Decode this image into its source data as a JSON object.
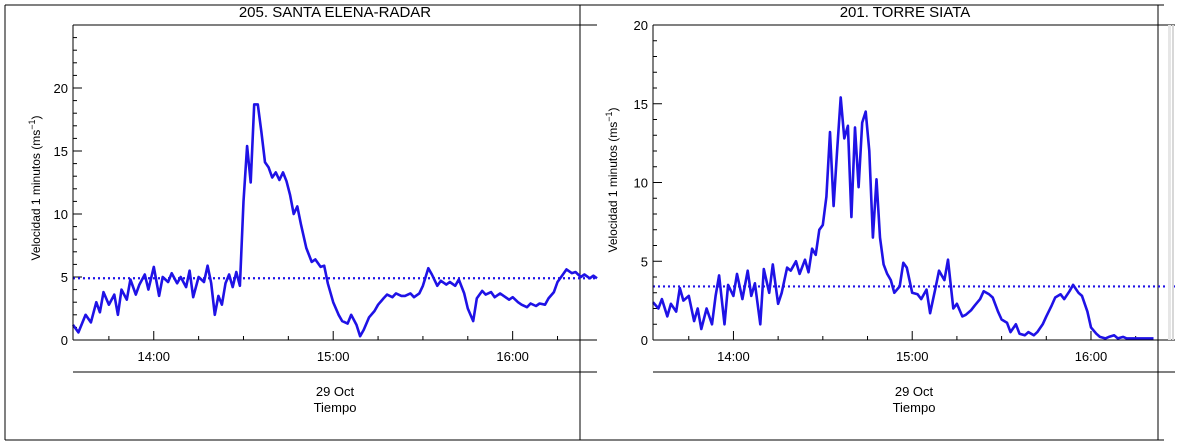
{
  "colors": {
    "series": "#1f12e6",
    "axis": "#000000",
    "background": "#ffffff"
  },
  "chart_data": [
    {
      "type": "line",
      "title": "205. SANTA ELENA-RADAR",
      "ylabel": "Velocidad 1 minutos (ms",
      "ylabel_sup": "−1",
      "ylabel_close": ")",
      "xlabel_date": "29 Oct",
      "xlabel": "Tiempo",
      "xlim": [
        13.55,
        16.47
      ],
      "ylim": [
        0,
        25
      ],
      "yticks": [
        0,
        5,
        10,
        15,
        20
      ],
      "ytick_labels": [
        "0",
        "5",
        "10",
        "15",
        "20"
      ],
      "xticks": [
        14,
        15,
        16
      ],
      "xtick_labels": [
        "14:00",
        "15:00",
        "16:00"
      ],
      "threshold": 4.9,
      "grid": false,
      "series": [
        {
          "x": [
            13.55,
            13.58,
            13.62,
            13.65,
            13.68,
            13.7,
            13.72,
            13.75,
            13.78,
            13.8,
            13.82,
            13.85,
            13.87,
            13.9,
            13.92,
            13.95,
            13.97,
            14.0,
            14.03,
            14.05,
            14.08,
            14.1,
            14.13,
            14.15,
            14.18,
            14.2,
            14.22,
            14.25,
            14.28,
            14.3,
            14.32,
            14.34,
            14.36,
            14.38,
            14.4,
            14.42,
            14.44,
            14.46,
            14.48,
            14.5,
            14.52,
            14.54,
            14.56,
            14.58,
            14.6,
            14.62,
            14.64,
            14.66,
            14.68,
            14.7,
            14.72,
            14.74,
            14.76,
            14.78,
            14.8,
            14.82,
            14.85,
            14.88,
            14.9,
            14.93,
            14.95,
            14.97,
            15.0,
            15.03,
            15.05,
            15.08,
            15.1,
            15.13,
            15.15,
            15.17,
            15.2,
            15.23,
            15.25,
            15.28,
            15.3,
            15.33,
            15.35,
            15.38,
            15.4,
            15.43,
            15.45,
            15.48,
            15.5,
            15.53,
            15.55,
            15.58,
            15.6,
            15.63,
            15.65,
            15.68,
            15.7,
            15.73,
            15.75,
            15.78,
            15.8,
            15.83,
            15.85,
            15.88,
            15.9,
            15.93,
            15.95,
            15.98,
            16.0,
            16.03,
            16.05,
            16.08,
            16.1,
            16.13,
            16.15,
            16.18,
            16.2,
            16.23,
            16.25,
            16.28,
            16.3,
            16.33,
            16.35,
            16.38,
            16.4,
            16.43,
            16.45,
            16.47
          ],
          "values": [
            1.2,
            0.6,
            2.0,
            1.4,
            3.0,
            2.2,
            3.8,
            2.8,
            3.6,
            2.0,
            4.0,
            3.2,
            4.8,
            3.6,
            4.4,
            5.2,
            4.0,
            5.8,
            3.5,
            5.0,
            4.6,
            5.3,
            4.5,
            5.0,
            4.2,
            5.5,
            3.4,
            5.0,
            4.6,
            5.9,
            4.5,
            2.0,
            3.5,
            2.8,
            4.5,
            5.2,
            4.2,
            5.4,
            4.3,
            11.0,
            15.4,
            12.5,
            18.7,
            18.7,
            16.5,
            14.1,
            13.7,
            12.9,
            13.3,
            12.7,
            13.3,
            12.6,
            11.5,
            10.0,
            10.6,
            9.2,
            7.3,
            6.2,
            6.4,
            5.8,
            5.9,
            4.5,
            3.0,
            2.0,
            1.5,
            1.3,
            2.0,
            1.2,
            0.3,
            0.8,
            1.8,
            2.3,
            2.8,
            3.3,
            3.6,
            3.4,
            3.7,
            3.5,
            3.5,
            3.7,
            3.4,
            3.7,
            4.3,
            5.7,
            5.2,
            4.3,
            4.7,
            4.4,
            4.6,
            4.3,
            4.8,
            3.7,
            2.5,
            1.5,
            3.3,
            3.9,
            3.6,
            3.8,
            3.4,
            3.7,
            3.5,
            3.2,
            3.4,
            3.0,
            2.8,
            2.6,
            2.9,
            2.7,
            2.9,
            2.8,
            3.3,
            3.8,
            4.6,
            5.2,
            5.6,
            5.3,
            5.4,
            5.0,
            5.2,
            4.9,
            5.1,
            4.9
          ]
        }
      ]
    },
    {
      "type": "line",
      "title": "201. TORRE SIATA",
      "ylabel": "Velocidad 1 minutos (ms",
      "ylabel_sup": "−1",
      "ylabel_close": ")",
      "xlabel_date": "29 Oct",
      "xlabel": "Tiempo",
      "xlim": [
        13.55,
        16.47
      ],
      "ylim": [
        0,
        20
      ],
      "yticks": [
        0,
        5,
        10,
        15,
        20
      ],
      "ytick_labels": [
        "0",
        "5",
        "10",
        "15",
        "20"
      ],
      "xticks": [
        14,
        15,
        16
      ],
      "xtick_labels": [
        "14:00",
        "15:00",
        "16:00"
      ],
      "threshold": 3.4,
      "grid": false,
      "series": [
        {
          "x": [
            13.55,
            13.58,
            13.6,
            13.63,
            13.65,
            13.68,
            13.7,
            13.72,
            13.75,
            13.78,
            13.8,
            13.82,
            13.85,
            13.88,
            13.9,
            13.92,
            13.95,
            13.97,
            14.0,
            14.02,
            14.05,
            14.08,
            14.1,
            14.12,
            14.15,
            14.17,
            14.2,
            14.22,
            14.25,
            14.27,
            14.3,
            14.32,
            14.35,
            14.37,
            14.4,
            14.42,
            14.44,
            14.46,
            14.48,
            14.5,
            14.52,
            14.54,
            14.56,
            14.58,
            14.6,
            14.62,
            14.64,
            14.66,
            14.68,
            14.7,
            14.72,
            14.74,
            14.76,
            14.78,
            14.8,
            14.82,
            14.84,
            14.86,
            14.88,
            14.9,
            14.93,
            14.95,
            14.97,
            15.0,
            15.03,
            15.05,
            15.08,
            15.1,
            15.13,
            15.15,
            15.18,
            15.2,
            15.23,
            15.25,
            15.28,
            15.3,
            15.33,
            15.35,
            15.38,
            15.4,
            15.43,
            15.45,
            15.48,
            15.5,
            15.53,
            15.55,
            15.58,
            15.6,
            15.63,
            15.65,
            15.68,
            15.7,
            15.73,
            15.75,
            15.78,
            15.8,
            15.83,
            15.85,
            15.88,
            15.9,
            15.93,
            15.95,
            15.98,
            16.0,
            16.03,
            16.05,
            16.08,
            16.1,
            16.13,
            16.15,
            16.18,
            16.2,
            16.23,
            16.25,
            16.28,
            16.3,
            16.33,
            16.35
          ],
          "values": [
            2.4,
            2.0,
            2.6,
            1.5,
            2.3,
            1.8,
            3.3,
            2.5,
            2.8,
            1.2,
            2.0,
            0.7,
            2.0,
            1.0,
            2.8,
            4.1,
            1.0,
            3.5,
            2.8,
            4.2,
            2.6,
            4.4,
            2.8,
            3.6,
            1.0,
            4.5,
            3.0,
            4.8,
            2.3,
            3.0,
            4.6,
            4.4,
            5.0,
            4.2,
            5.1,
            4.3,
            5.8,
            5.4,
            7.0,
            7.3,
            9.1,
            13.2,
            8.5,
            12.0,
            15.4,
            12.8,
            13.6,
            7.8,
            13.5,
            9.7,
            13.8,
            14.5,
            12.0,
            6.5,
            10.2,
            6.5,
            4.8,
            4.2,
            3.8,
            3.0,
            3.4,
            4.9,
            4.6,
            3.0,
            2.9,
            2.6,
            3.2,
            1.7,
            3.3,
            4.4,
            3.8,
            5.1,
            2.0,
            2.3,
            1.5,
            1.6,
            1.9,
            2.2,
            2.6,
            3.1,
            2.9,
            2.7,
            1.8,
            1.3,
            1.1,
            0.5,
            1.0,
            0.4,
            0.3,
            0.5,
            0.3,
            0.5,
            1.0,
            1.5,
            2.2,
            2.7,
            2.9,
            2.6,
            3.1,
            3.5,
            3.0,
            2.8,
            1.8,
            0.8,
            0.4,
            0.2,
            0.1,
            0.2,
            0.3,
            0.1,
            0.2,
            0.1,
            0.1,
            0.1,
            0.1,
            0.1,
            0.1,
            0.1
          ]
        }
      ]
    }
  ]
}
